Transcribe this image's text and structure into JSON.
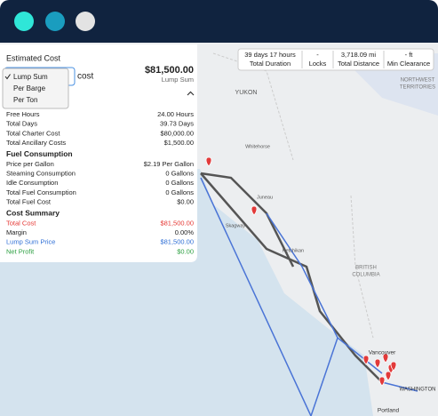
{
  "stats": [
    {
      "value": "39 days 17 hours",
      "label": "Total Duration"
    },
    {
      "value": "-",
      "label": "Locks"
    },
    {
      "value": "3,718.09 mi",
      "label": "Total Distance"
    },
    {
      "value": "- ft",
      "label": "Min Clearance"
    }
  ],
  "map_labels": [
    "YUKON",
    "NORTHWEST",
    "TERRITORIES",
    "Whitehorse",
    "Juneau",
    "Skagway",
    "Ketchikan",
    "BRITISH",
    "COLUMBIA",
    "Vancouver",
    "WASHINGTON",
    "Portland"
  ],
  "panel": {
    "title": "Estimated Cost",
    "dropdown_options": [
      "Lump Sum",
      "Per Barge",
      "Per Ton"
    ],
    "field_suffix": "cost",
    "price": "$81,500.00",
    "price_basis": "Lump Sum",
    "sections": [
      {
        "heading": null,
        "rows": [
          [
            "Free Hours",
            "24.00 Hours"
          ],
          [
            "Total Days",
            "39.73 Days"
          ],
          [
            "Total Charter Cost",
            "$80,000.00"
          ],
          [
            "Total Ancillary Costs",
            "$1,500.00"
          ]
        ]
      },
      {
        "heading": "Fuel Consumption",
        "rows": [
          [
            "Price per Gallon",
            "$2.19 Per Gallon"
          ],
          [
            "Steaming Consumption",
            "0 Gallons"
          ],
          [
            "Idle Consumption",
            "0 Gallons"
          ],
          [
            "Total Fuel Consumption",
            "0 Gallons"
          ],
          [
            "Total Fuel Cost",
            "$0.00"
          ]
        ]
      },
      {
        "heading": "Cost Summary",
        "rows": [
          [
            "Total Cost",
            "$81,500.00"
          ],
          [
            "Margin",
            "0.00%"
          ],
          [
            "Lump Sum Price",
            "$81,500.00"
          ],
          [
            "Net Profit",
            "$0.00"
          ]
        ]
      }
    ]
  }
}
